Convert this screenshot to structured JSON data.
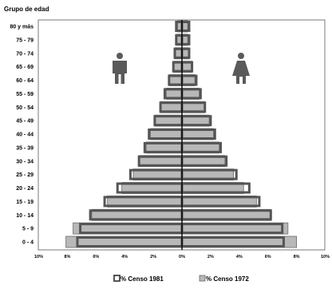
{
  "chart_data": {
    "type": "bar",
    "y_axis_title": "Grupo de edad",
    "age_groups": [
      "0 - 4",
      "5 - 9",
      "10 - 14",
      "15 - 19",
      "20 - 24",
      "25 - 29",
      "30 - 34",
      "35 - 39",
      "40 - 44",
      "45 - 49",
      "50 - 54",
      "55 - 59",
      "60 - 64",
      "65 - 69",
      "70 - 74",
      "75 - 79",
      "80 y más"
    ],
    "x_ticks": [
      "10%",
      "8%",
      "6%",
      "4%",
      "2%",
      "0%",
      "2%",
      "4%",
      "6%",
      "8%",
      "10%"
    ],
    "xlim": [
      -10,
      10
    ],
    "grid": false,
    "legend_position": "bottom",
    "series": [
      {
        "name": "% Censo 1972",
        "color": "#b8b8b8",
        "male": [
          8.1,
          7.6,
          6.3,
          5.2,
          4.2,
          3.4,
          3.0,
          2.5,
          2.2,
          1.9,
          1.5,
          1.1,
          0.9,
          0.6,
          0.5,
          0.4,
          0.3
        ],
        "female": [
          8.0,
          7.4,
          6.2,
          5.2,
          4.3,
          3.6,
          3.0,
          2.6,
          2.2,
          1.9,
          1.6,
          1.2,
          0.9,
          0.7,
          0.5,
          0.4,
          0.4
        ]
      },
      {
        "name": "% Censo 1981",
        "color": "#ffffff",
        "border": "#555555",
        "male": [
          7.3,
          7.1,
          6.4,
          5.4,
          4.5,
          3.6,
          3.0,
          2.6,
          2.3,
          1.9,
          1.5,
          1.2,
          0.9,
          0.6,
          0.5,
          0.4,
          0.4
        ],
        "female": [
          7.1,
          7.0,
          6.2,
          5.4,
          4.7,
          3.8,
          3.1,
          2.7,
          2.3,
          2.0,
          1.6,
          1.3,
          1.0,
          0.7,
          0.5,
          0.5,
          0.5
        ]
      }
    ]
  },
  "icons": {
    "male": "male-figure-icon",
    "female": "female-figure-icon"
  }
}
